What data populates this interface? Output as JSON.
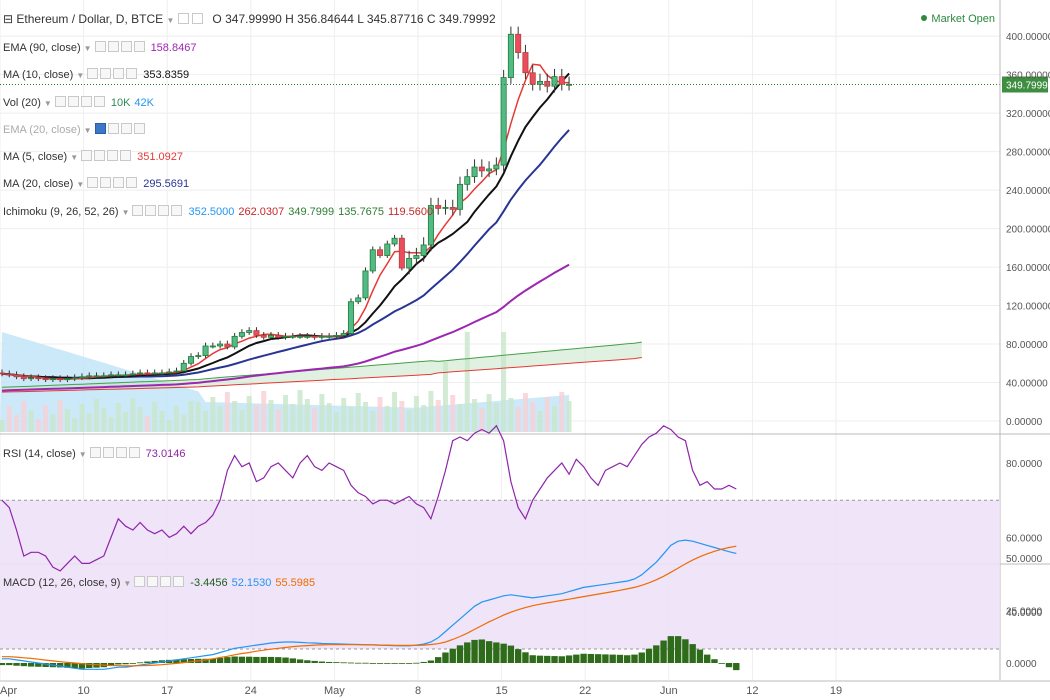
{
  "header": {
    "symbol": "Ethereum / Dollar, D, BTCE",
    "open": "O 347.99990",
    "high": "H 356.84644",
    "low": "L 345.87716",
    "close": "C 349.79992",
    "market_status": "Market Open",
    "collapse_glyph": "⊟"
  },
  "indicators": [
    {
      "label": "EMA (90, close)",
      "values": [
        "158.8467"
      ],
      "colors": [
        "#9c27b0"
      ],
      "dim": false
    },
    {
      "label": "MA (10, close)",
      "values": [
        "353.8359"
      ],
      "colors": [
        "#111111"
      ],
      "dim": false
    },
    {
      "label": "Vol (20)",
      "values": [
        "10K",
        "42K"
      ],
      "colors": [
        "#2e8b57",
        "#2196f3"
      ],
      "dim": false
    },
    {
      "label": "EMA (20, close)",
      "values": [],
      "colors": [],
      "dim": true
    },
    {
      "label": "MA (5, close)",
      "values": [
        "351.0927"
      ],
      "colors": [
        "#e53935"
      ],
      "dim": false
    },
    {
      "label": "MA (20, close)",
      "values": [
        "295.5691"
      ],
      "colors": [
        "#283593"
      ],
      "dim": false
    },
    {
      "label": "Ichimoku (9, 26, 52, 26)",
      "values": [
        "352.5000",
        "262.0307",
        "349.7999",
        "135.7675",
        "119.5600"
      ],
      "colors": [
        "#2196f3",
        "#c62828",
        "#2e7d32",
        "#2e7d32",
        "#c62828"
      ],
      "dim": false
    }
  ],
  "rsi_legend": {
    "label": "RSI (14, close)",
    "value": "73.0146",
    "color": "#8e24aa"
  },
  "macd_legend": {
    "label": "MACD (12, 26, close, 9)",
    "values": [
      "-3.4456",
      "52.1530",
      "55.5985"
    ],
    "colors": [
      "#1b5e20",
      "#2196f3",
      "#ef6c00"
    ]
  },
  "price_axis": {
    "labels": [
      "400.00000",
      "360.00000",
      "320.00000",
      "280.00000",
      "240.00000",
      "200.00000",
      "160.00000",
      "120.00000",
      "80.00000",
      "40.00000",
      "0.00000"
    ],
    "last_price": "349.79992"
  },
  "rsi_axis": {
    "labels": [
      "80.0000",
      "60.0000",
      "40.0000"
    ]
  },
  "macd_axis": {
    "labels": [
      "50.0000",
      "25.0000",
      "0.0000"
    ]
  },
  "time_axis": {
    "labels": [
      "Apr",
      "10",
      "17",
      "24",
      "May",
      "8",
      "15",
      "22",
      "Jun",
      "12",
      "19"
    ]
  },
  "colors": {
    "up": "#53b987",
    "down": "#eb4d5c",
    "bg": "#ffffff",
    "grid": "#eeeeee"
  },
  "chart_data": [
    {
      "type": "candlestick",
      "title": "Ethereum / Dollar, D, BTCE",
      "x_start": "2017-04-02",
      "x_end": "2017-06-19",
      "ylim": [
        0,
        420
      ],
      "candles_by_week": [
        {
          "from": "2017-04-02",
          "closes": [
            49,
            48,
            46,
            44,
            45,
            44,
            43,
            44,
            43,
            44,
            45,
            46,
            47,
            47
          ]
        },
        {
          "from": "2017-04-16",
          "closes": [
            47,
            48,
            48,
            48,
            49,
            50,
            49,
            50,
            50,
            51,
            52,
            60,
            67,
            68
          ]
        },
        {
          "from": "2017-04-30",
          "closes": [
            78,
            78,
            80,
            77,
            88,
            92,
            94,
            89,
            87,
            89,
            87,
            88,
            88,
            88
          ]
        },
        {
          "from": "2017-05-14",
          "closes": [
            88,
            87,
            88,
            88,
            89,
            91,
            124,
            128,
            156,
            178,
            172,
            184,
            190,
            159
          ]
        },
        {
          "from": "2017-05-28",
          "closes": [
            169,
            172,
            183,
            224,
            221,
            222,
            220,
            246,
            254,
            264,
            260,
            262,
            266,
            357
          ]
        },
        {
          "from": "2017-06-11",
          "closes": [
            402,
            383,
            362,
            350,
            353,
            348,
            358,
            350,
            350
          ]
        }
      ],
      "series": [
        {
          "name": "EMA (90, close)",
          "last": 158.8467
        },
        {
          "name": "MA (10, close)",
          "last": 353.8359
        },
        {
          "name": "MA (5, close)",
          "last": 351.0927
        },
        {
          "name": "MA (20, close)",
          "last": 295.5691
        },
        {
          "name": "Ichimoku (9, 26, 52, 26)",
          "last": [
            352.5,
            262.0307,
            349.7999,
            135.7675,
            119.56
          ]
        }
      ],
      "volume_sma_last": "42K",
      "volume_last": "10K"
    },
    {
      "type": "line",
      "title": "RSI (14, close)",
      "ylim": [
        28,
        95
      ],
      "last": 73.0146,
      "band": [
        30,
        70
      ],
      "values": [
        70,
        68,
        62,
        55,
        56,
        56,
        55,
        52,
        51,
        53,
        55,
        53,
        53,
        54,
        55,
        60,
        65,
        63,
        62,
        64,
        62,
        61,
        62,
        60,
        61,
        63,
        61,
        63,
        64,
        66,
        70,
        78,
        82,
        79,
        80,
        75,
        76,
        79,
        80,
        78,
        76,
        80,
        82,
        79,
        78,
        80,
        79,
        78,
        74,
        72,
        71,
        69,
        70,
        70,
        69,
        70,
        71,
        69,
        68,
        65,
        71,
        78,
        86,
        87,
        86,
        88,
        89,
        88,
        90,
        86,
        75,
        68,
        65,
        70,
        73,
        76,
        78,
        80,
        77,
        81,
        79,
        76,
        74,
        78,
        79,
        80,
        79,
        82,
        85,
        87,
        88,
        90,
        89,
        87,
        86,
        78,
        74,
        75,
        73,
        73,
        74,
        73
      ]
    },
    {
      "type": "line",
      "title": "MACD (12, 26, close, 9)",
      "ylim": [
        -7,
        65
      ],
      "last": [
        -3.4456,
        52.153,
        55.5985
      ],
      "macd": [
        2,
        2,
        1.5,
        1,
        0.5,
        0,
        -0.5,
        -1,
        -1.5,
        -2,
        -2.5,
        -3,
        -3,
        -3,
        -3,
        -2.5,
        -2,
        -2,
        -1.5,
        -1,
        -0.5,
        0,
        0.5,
        1,
        1.5,
        2,
        2.5,
        3,
        3.5,
        4,
        5,
        6,
        7,
        7.5,
        8,
        8.5,
        9,
        9.5,
        9.8,
        10,
        10,
        9.8,
        9.6,
        9.5,
        9.3,
        9.2,
        9.1,
        9,
        8.9,
        8.8,
        8.7,
        8.6,
        8.5,
        8.4,
        8.3,
        8.2,
        8.2,
        8.5,
        9,
        10,
        12,
        15,
        18,
        21,
        24,
        27,
        29,
        30,
        31,
        32,
        32.5,
        32,
        31.5,
        31,
        31.5,
        32,
        32.5,
        33,
        34,
        35,
        36,
        36.5,
        37,
        37.5,
        38,
        38.5,
        39,
        40,
        42,
        45,
        48,
        52,
        56,
        58,
        58.5,
        58,
        57,
        56,
        55,
        54,
        53,
        52.2
      ],
      "signal": [
        3,
        3,
        2.8,
        2.5,
        2.2,
        1.8,
        1.4,
        1,
        0.6,
        0.3,
        0,
        -0.3,
        -0.6,
        -0.8,
        -1,
        -1.2,
        -1.3,
        -1.4,
        -1.4,
        -1.3,
        -1.2,
        -1,
        -0.8,
        -0.5,
        -0.2,
        0.2,
        0.6,
        1,
        1.5,
        2,
        2.6,
        3.2,
        3.9,
        4.5,
        5,
        5.6,
        6.1,
        6.6,
        7,
        7.4,
        7.8,
        8.1,
        8.3,
        8.5,
        8.6,
        8.7,
        8.7,
        8.7,
        8.7,
        8.7,
        8.6,
        8.6,
        8.5,
        8.5,
        8.4,
        8.4,
        8.4,
        8.4,
        8.5,
        8.8,
        9.2,
        10,
        11.2,
        12.6,
        14.2,
        16,
        17.8,
        19.6,
        21.2,
        22.8,
        24.2,
        25.4,
        26.4,
        27.3,
        28,
        28.6,
        29.2,
        29.8,
        30.4,
        31,
        31.6,
        32.2,
        32.8,
        33.4,
        34,
        34.6,
        35.3,
        36,
        37,
        38.2,
        39.6,
        41.3,
        43.2,
        45.2,
        47.2,
        49,
        50.6,
        52,
        53.2,
        54.2,
        55,
        55.6
      ]
    }
  ]
}
